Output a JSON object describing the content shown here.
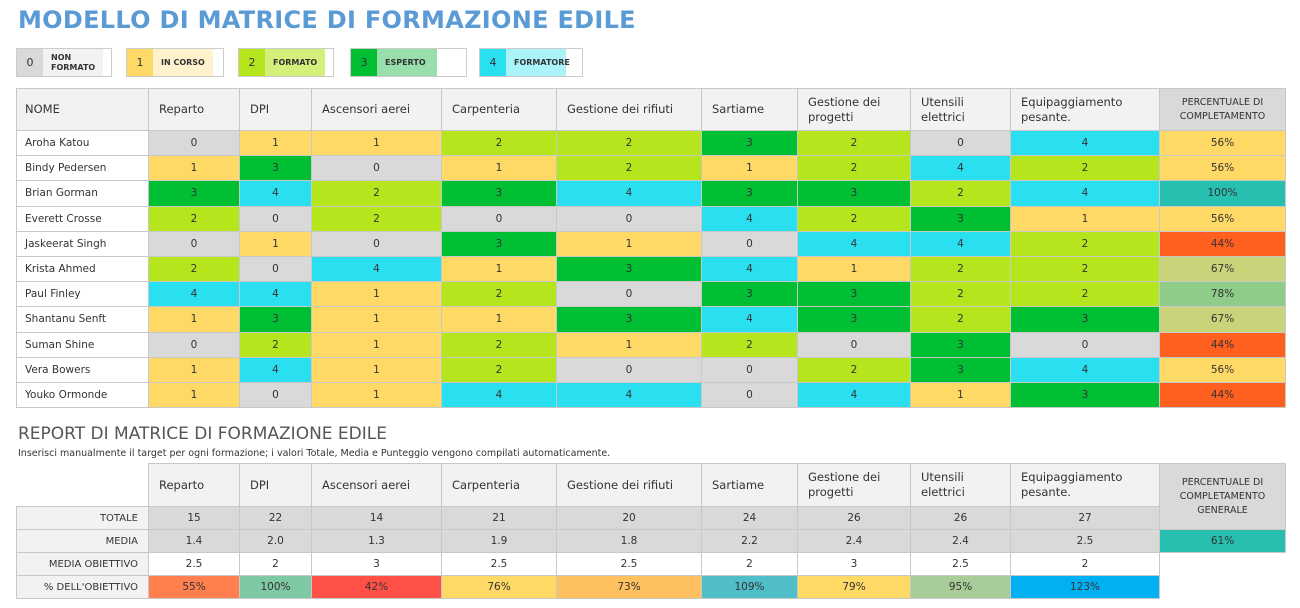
{
  "title": "MODELLO DI MATRICE DI FORMAZIONE EDILE",
  "legend": [
    {
      "value": "0",
      "label": "NON FORMATO",
      "color": "#d9d9d9",
      "light": "#f2f2f2"
    },
    {
      "value": "1",
      "label": "IN CORSO",
      "color": "#ffd966",
      "light": "#fff2cc"
    },
    {
      "value": "2",
      "label": "FORMATO",
      "color": "#b5e61d",
      "light": "#d4f07a"
    },
    {
      "value": "3",
      "label": "ESPERTO",
      "color": "#00bf33",
      "light": "#98dfab"
    },
    {
      "value": "4",
      "label": "FORMATORE",
      "color": "#2adfef",
      "light": "#aaf3f8"
    }
  ],
  "matrix": {
    "name_header": "NOME",
    "columns": [
      "Reparto",
      "DPI",
      "Ascensori aerei",
      "Carpenteria",
      "Gestione dei rifiuti",
      "Sartiame",
      "Gestione dei progetti",
      "Utensili elettrici",
      "Equipaggiamento pesante."
    ],
    "percent_header": "PERCENTUALE DI COMPLETAMENTO",
    "rows": [
      {
        "name": "Aroha Katou",
        "values": [
          0,
          1,
          1,
          2,
          2,
          3,
          2,
          0,
          4
        ],
        "percent": "56%",
        "percent_color": "#ffd966"
      },
      {
        "name": "Bindy Pedersen",
        "values": [
          1,
          3,
          0,
          1,
          2,
          1,
          2,
          4,
          2
        ],
        "percent": "56%",
        "percent_color": "#ffd966"
      },
      {
        "name": "Brian Gorman",
        "values": [
          3,
          4,
          2,
          3,
          4,
          3,
          3,
          2,
          4
        ],
        "percent": "100%",
        "percent_color": "#26bfb0"
      },
      {
        "name": "Everett Crosse",
        "values": [
          2,
          0,
          2,
          0,
          0,
          4,
          2,
          3,
          1
        ],
        "percent": "56%",
        "percent_color": "#ffd966"
      },
      {
        "name": "Jaskeerat Singh",
        "values": [
          0,
          1,
          0,
          3,
          1,
          0,
          4,
          4,
          2
        ],
        "percent": "44%",
        "percent_color": "#ff5f1f"
      },
      {
        "name": "Krista Ahmed",
        "values": [
          2,
          0,
          4,
          1,
          3,
          4,
          1,
          2,
          2
        ],
        "percent": "67%",
        "percent_color": "#c9d37a"
      },
      {
        "name": "Paul Finley",
        "values": [
          4,
          4,
          1,
          2,
          0,
          3,
          3,
          2,
          2
        ],
        "percent": "78%",
        "percent_color": "#8fcc8a"
      },
      {
        "name": "Shantanu Senft",
        "values": [
          1,
          3,
          1,
          1,
          3,
          4,
          3,
          2,
          3
        ],
        "percent": "67%",
        "percent_color": "#c9d37a"
      },
      {
        "name": "Suman Shine",
        "values": [
          0,
          2,
          1,
          2,
          1,
          2,
          0,
          3,
          0
        ],
        "percent": "44%",
        "percent_color": "#ff5f1f"
      },
      {
        "name": "Vera Bowers",
        "values": [
          1,
          4,
          1,
          2,
          0,
          0,
          2,
          3,
          4
        ],
        "percent": "56%",
        "percent_color": "#ffd966"
      },
      {
        "name": "Youko Ormonde",
        "values": [
          1,
          0,
          1,
          4,
          4,
          0,
          4,
          1,
          3
        ],
        "percent": "44%",
        "percent_color": "#ff5f1f"
      }
    ]
  },
  "report": {
    "title": "REPORT DI MATRICE DI FORMAZIONE EDILE",
    "note": "Inserisci manualmente il target per ogni formazione; i valori Totale, Media e Punteggio vengono compilati automaticamente.",
    "overall_header": "PERCENTUALE DI COMPLETAMENTO GENERALE",
    "overall_value": "61%",
    "overall_color": "#26bfb0",
    "rows": [
      {
        "label": "TOTALE",
        "values": [
          "15",
          "22",
          "14",
          "21",
          "20",
          "24",
          "26",
          "26",
          "27"
        ]
      },
      {
        "label": "MEDIA",
        "values": [
          "1.4",
          "2.0",
          "1.3",
          "1.9",
          "1.8",
          "2.2",
          "2.4",
          "2.4",
          "2.5"
        ]
      },
      {
        "label": "MEDIA OBIETTIVO",
        "values": [
          "2.5",
          "2",
          "3",
          "2.5",
          "2.5",
          "2",
          "3",
          "2.5",
          "2"
        ]
      },
      {
        "label": "% DELL'OBIETTIVO",
        "values": [
          "55%",
          "100%",
          "42%",
          "76%",
          "73%",
          "109%",
          "79%",
          "95%",
          "123%"
        ],
        "colors": [
          "#ff7f4f",
          "#7fc8a4",
          "#ff5048",
          "#ffd966",
          "#ffc05f",
          "#4fbec8",
          "#ffd966",
          "#a8cc98",
          "#00b0f0"
        ]
      }
    ]
  }
}
